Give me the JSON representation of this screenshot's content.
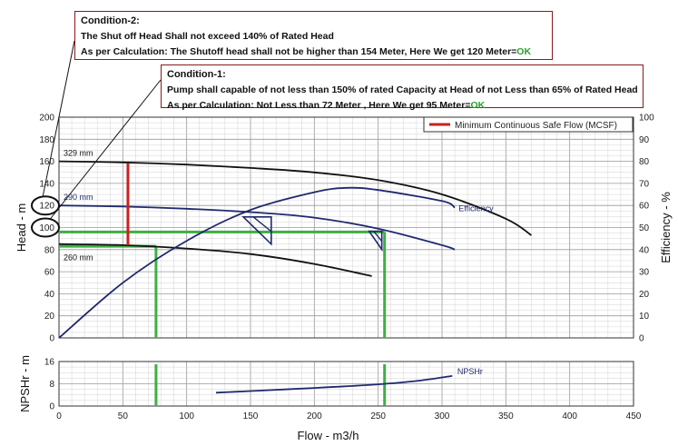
{
  "notes": {
    "condition2": {
      "title": "Condition-2:",
      "line1": "The Shut off Head Shall not exceed 140% of Rated Head",
      "line2": "As per Calculation: The Shutoff head shall not be higher than 154 Meter, Here We get 120 Meter=",
      "ok": "OK"
    },
    "condition1": {
      "title": "Condition-1:",
      "line1": "Pump shall capable of not less than 150% of rated Capacity at Head of not Less than 65% of Rated Head",
      "line2": "As per Calculation: Not Less than 72 Meter , Here We get 95 Meter=",
      "ok": "OK"
    }
  },
  "colors": {
    "impeller_curves": "#111111",
    "efficiency": "#1f2a6e",
    "mcsf": "#cc1f1f",
    "green_marker": "#3cb043",
    "npshr": "#1f2a6e",
    "grid": "#9a9a9a",
    "annotation_border": "#8b1a1a",
    "ok": "#2ca02c"
  },
  "chart_data": {
    "type": "line",
    "xlabel": "Flow - m3/h",
    "xlim": [
      0,
      450
    ],
    "x_ticks": [
      0,
      50,
      100,
      150,
      200,
      250,
      300,
      350,
      400,
      450
    ],
    "head_panel": {
      "ylabel_left": "Head - m",
      "ylabel_right": "Efficiency - %",
      "ylim_left": [
        0,
        200
      ],
      "ylim_right": [
        0,
        100
      ],
      "left_ticks": [
        0,
        20,
        40,
        60,
        80,
        100,
        120,
        140,
        160,
        180,
        200
      ],
      "right_ticks": [
        0,
        10,
        20,
        30,
        40,
        50,
        60,
        70,
        80,
        90,
        100
      ],
      "grid": true,
      "legend": {
        "label": "Minimum Continuous Safe Flow (MCSF)",
        "placement": "top-right"
      },
      "series": [
        {
          "name": "329 mm",
          "axis": "left",
          "x": [
            0,
            50,
            100,
            150,
            200,
            250,
            300,
            350,
            370
          ],
          "y": [
            160,
            159,
            157,
            154,
            150,
            143,
            130,
            108,
            93
          ]
        },
        {
          "name": "290 mm",
          "axis": "left",
          "x": [
            0,
            50,
            100,
            150,
            200,
            250,
            300,
            310
          ],
          "y": [
            120,
            119,
            117,
            114,
            109,
            99,
            84,
            80
          ]
        },
        {
          "name": "260 mm",
          "axis": "left",
          "x": [
            0,
            50,
            100,
            150,
            200,
            245
          ],
          "y": [
            85,
            84,
            81,
            76,
            67,
            56
          ]
        },
        {
          "name": "Efficiency",
          "axis": "right",
          "x": [
            0,
            50,
            100,
            150,
            200,
            225,
            250,
            300,
            310
          ],
          "y": [
            0,
            25,
            44,
            58,
            66,
            68,
            67,
            62,
            59
          ]
        }
      ],
      "mcsf": {
        "x": 54,
        "y_range": [
          84,
          158
        ]
      },
      "operating_points": [
        {
          "x": 160,
          "y": 108
        },
        {
          "x": 250,
          "y": 95
        }
      ],
      "guides": [
        {
          "points": [
            [
              0,
              96
            ],
            [
              255,
              96
            ]
          ]
        },
        {
          "points": [
            [
              255,
              96
            ],
            [
              255,
              0
            ]
          ]
        },
        {
          "points": [
            [
              0,
              83
            ],
            [
              76,
              83
            ]
          ]
        },
        {
          "points": [
            [
              76,
              83
            ],
            [
              76,
              0
            ]
          ]
        }
      ],
      "circled_ticks": [
        120,
        100
      ]
    },
    "npsh_panel": {
      "ylabel": "NPSHr - m",
      "ylim": [
        0,
        16
      ],
      "y_ticks": [
        0,
        8,
        16
      ],
      "grid": true,
      "series": [
        {
          "name": "NPSHr",
          "x": [
            123,
            150,
            200,
            250,
            280,
            308
          ],
          "y": [
            4.8,
            5.4,
            6.5,
            7.8,
            9.0,
            10.8
          ]
        }
      ],
      "guides": [
        {
          "points": [
            [
              76,
              0
            ],
            [
              76,
              16
            ]
          ]
        },
        {
          "points": [
            [
              255,
              0
            ],
            [
              255,
              16
            ]
          ]
        }
      ]
    }
  }
}
